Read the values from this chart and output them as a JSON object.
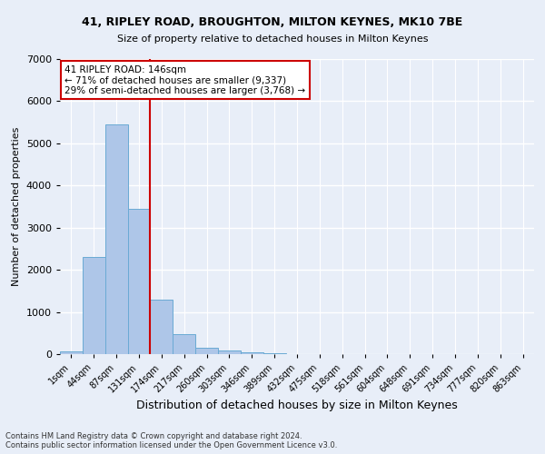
{
  "title1": "41, RIPLEY ROAD, BROUGHTON, MILTON KEYNES, MK10 7BE",
  "title2": "Size of property relative to detached houses in Milton Keynes",
  "xlabel": "Distribution of detached houses by size in Milton Keynes",
  "ylabel": "Number of detached properties",
  "footer1": "Contains HM Land Registry data © Crown copyright and database right 2024.",
  "footer2": "Contains public sector information licensed under the Open Government Licence v3.0.",
  "annotation_line1": "41 RIPLEY ROAD: 146sqm",
  "annotation_line2": "← 71% of detached houses are smaller (9,337)",
  "annotation_line3": "29% of semi-detached houses are larger (3,768) →",
  "bin_labels": [
    "1sqm",
    "44sqm",
    "87sqm",
    "131sqm",
    "174sqm",
    "217sqm",
    "260sqm",
    "303sqm",
    "346sqm",
    "389sqm",
    "432sqm",
    "475sqm",
    "518sqm",
    "561sqm",
    "604sqm",
    "648sqm",
    "691sqm",
    "734sqm",
    "777sqm",
    "820sqm",
    "863sqm"
  ],
  "bar_heights": [
    75,
    2300,
    5450,
    3450,
    1300,
    475,
    160,
    85,
    50,
    30,
    10,
    5,
    0,
    0,
    0,
    0,
    0,
    0,
    0,
    0,
    0
  ],
  "bar_color": "#aec6e8",
  "bar_edgecolor": "#6aaad4",
  "vline_position": 3.5,
  "vline_color": "#cc0000",
  "ylim": [
    0,
    7000
  ],
  "yticks": [
    0,
    1000,
    2000,
    3000,
    4000,
    5000,
    6000,
    7000
  ],
  "bg_color": "#e8eef8",
  "grid_color": "#ffffff",
  "annotation_box_color": "#ffffff",
  "annotation_border_color": "#cc0000",
  "title1_fontsize": 9,
  "title2_fontsize": 8
}
